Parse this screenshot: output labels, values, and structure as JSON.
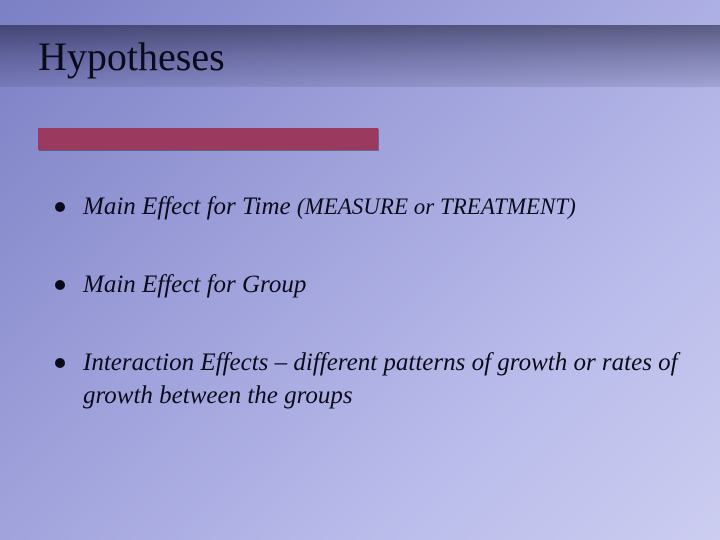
{
  "slide": {
    "title": "Hypotheses",
    "background_gradient": [
      "#7b7fc4",
      "#9a9dd8",
      "#b8baea",
      "#cccdf0"
    ],
    "title_band_gradient": [
      "rgba(20,20,50,0.55)",
      "rgba(40,40,80,0.35)",
      "rgba(60,60,100,0.15)"
    ],
    "accent_bar_color": "#9a3a5e",
    "text_color": "#0a0a1a",
    "title_fontsize": 40,
    "body_fontsize": 25,
    "paren_fontsize": 23,
    "bullets": [
      {
        "main": "Main Effect for Time ",
        "paren": "(MEASURE or  TREATMENT)"
      },
      {
        "main": "Main Effect for Group",
        "paren": ""
      },
      {
        "main": " Interaction Effects – different patterns of growth or rates of growth between the groups",
        "paren": ""
      }
    ]
  }
}
